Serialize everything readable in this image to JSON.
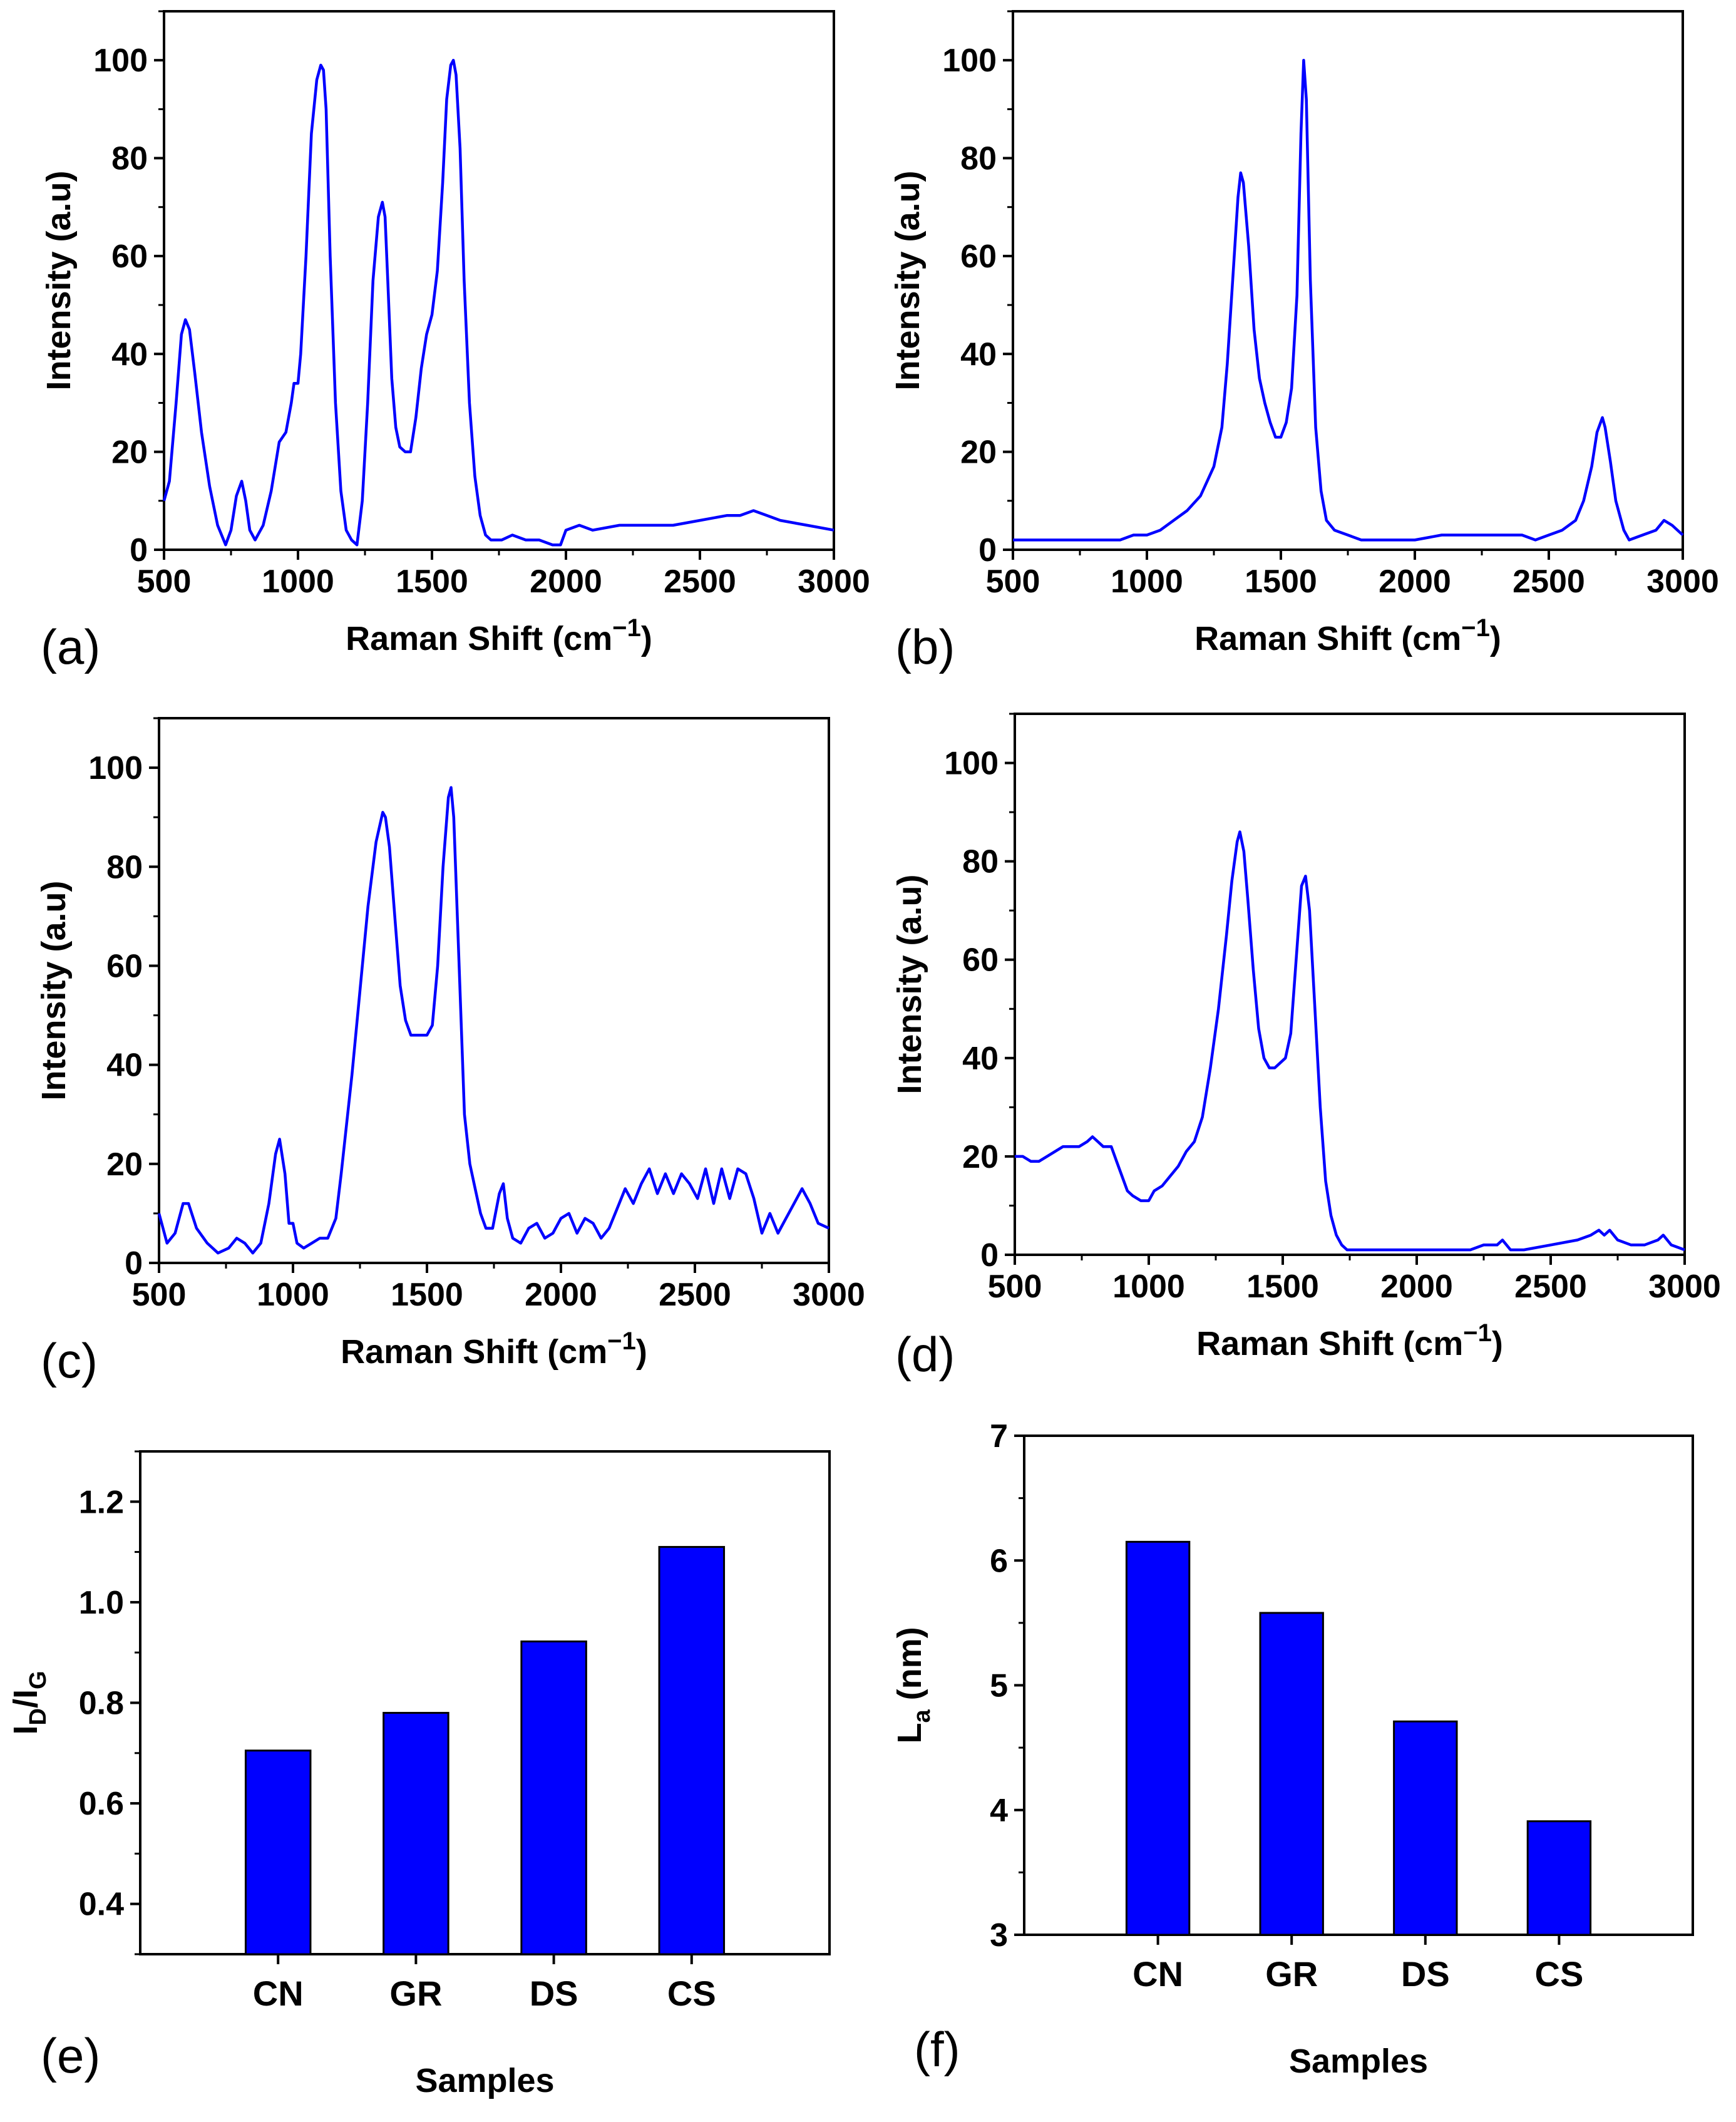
{
  "colors": {
    "series": "#0000ff",
    "axis": "#000000",
    "background": "#ffffff"
  },
  "chart_data": [
    {
      "type": "line",
      "panel_label": "(a)",
      "xlabel": "Raman Shift (cm",
      "xlabel_sup": "−1",
      "xlabel_close": ")",
      "ylabel": "Intensity (a.u)",
      "xlim": [
        500,
        3000
      ],
      "ylim": [
        0,
        110
      ],
      "xticks": [
        "500",
        "1000",
        "1500",
        "2000",
        "2500",
        "3000"
      ],
      "yticks": [
        "0",
        "20",
        "40",
        "60",
        "80",
        "100"
      ],
      "x": [
        500,
        520,
        545,
        565,
        580,
        595,
        615,
        640,
        670,
        700,
        730,
        750,
        770,
        790,
        805,
        820,
        840,
        870,
        900,
        930,
        955,
        975,
        985,
        1000,
        1010,
        1030,
        1050,
        1070,
        1085,
        1095,
        1105,
        1120,
        1140,
        1160,
        1180,
        1200,
        1220,
        1240,
        1260,
        1280,
        1300,
        1315,
        1325,
        1335,
        1350,
        1365,
        1380,
        1400,
        1420,
        1440,
        1460,
        1480,
        1500,
        1520,
        1540,
        1555,
        1570,
        1580,
        1590,
        1605,
        1620,
        1640,
        1660,
        1680,
        1700,
        1720,
        1740,
        1760,
        1800,
        1850,
        1900,
        1950,
        1980,
        2000,
        2050,
        2100,
        2200,
        2300,
        2400,
        2500,
        2600,
        2650,
        2700,
        2750,
        2800,
        2900,
        3000
      ],
      "y": [
        10,
        14,
        30,
        44,
        47,
        45,
        36,
        24,
        13,
        5,
        1,
        4,
        11,
        14,
        10,
        4,
        2,
        5,
        12,
        22,
        24,
        30,
        34,
        34,
        40,
        60,
        85,
        96,
        99,
        98,
        90,
        60,
        30,
        12,
        4,
        2,
        1,
        10,
        30,
        55,
        68,
        71,
        68,
        55,
        35,
        25,
        21,
        20,
        20,
        27,
        37,
        44,
        48,
        57,
        75,
        92,
        99,
        100,
        97,
        82,
        55,
        30,
        15,
        7,
        3,
        2,
        2,
        2,
        3,
        2,
        2,
        1,
        1,
        4,
        5,
        4,
        5,
        5,
        5,
        6,
        7,
        7,
        8,
        7,
        6,
        5,
        4
      ]
    },
    {
      "type": "line",
      "panel_label": "(b)",
      "xlabel": "Raman Shift (cm",
      "xlabel_sup": "−1",
      "xlabel_close": ")",
      "ylabel": "Intensity (a.u)",
      "xlim": [
        500,
        3000
      ],
      "ylim": [
        0,
        110
      ],
      "xticks": [
        "500",
        "1000",
        "1500",
        "2000",
        "2500",
        "3000"
      ],
      "yticks": [
        "0",
        "20",
        "40",
        "60",
        "80",
        "100"
      ],
      "x": [
        500,
        600,
        700,
        800,
        900,
        950,
        1000,
        1050,
        1100,
        1150,
        1200,
        1250,
        1280,
        1300,
        1320,
        1340,
        1350,
        1360,
        1380,
        1400,
        1420,
        1440,
        1460,
        1480,
        1500,
        1520,
        1540,
        1560,
        1575,
        1585,
        1595,
        1610,
        1630,
        1650,
        1670,
        1700,
        1750,
        1800,
        1900,
        2000,
        2100,
        2200,
        2300,
        2400,
        2450,
        2500,
        2550,
        2600,
        2630,
        2660,
        2680,
        2700,
        2710,
        2730,
        2750,
        2780,
        2800,
        2850,
        2900,
        2930,
        2960,
        3000
      ],
      "y": [
        2,
        2,
        2,
        2,
        2,
        3,
        3,
        4,
        6,
        8,
        11,
        17,
        25,
        38,
        55,
        72,
        77,
        75,
        62,
        45,
        35,
        30,
        26,
        23,
        23,
        26,
        33,
        52,
        85,
        100,
        92,
        55,
        25,
        12,
        6,
        4,
        3,
        2,
        2,
        2,
        3,
        3,
        3,
        3,
        2,
        3,
        4,
        6,
        10,
        17,
        24,
        27,
        25,
        18,
        10,
        4,
        2,
        3,
        4,
        6,
        5,
        3
      ]
    },
    {
      "type": "line",
      "panel_label": "(c)",
      "xlabel": "Raman Shift (cm",
      "xlabel_sup": "−1",
      "xlabel_close": ")",
      "ylabel": "Intensity (a.u)",
      "xlim": [
        500,
        3000
      ],
      "ylim": [
        0,
        110
      ],
      "xticks": [
        "500",
        "1000",
        "1500",
        "2000",
        "2500",
        "3000"
      ],
      "yticks": [
        "0",
        "20",
        "40",
        "60",
        "80",
        "100"
      ],
      "x": [
        500,
        530,
        560,
        590,
        610,
        640,
        680,
        720,
        760,
        790,
        820,
        850,
        880,
        910,
        935,
        950,
        970,
        985,
        1000,
        1015,
        1040,
        1070,
        1100,
        1130,
        1160,
        1180,
        1200,
        1220,
        1250,
        1280,
        1310,
        1335,
        1345,
        1360,
        1380,
        1400,
        1420,
        1440,
        1460,
        1480,
        1500,
        1520,
        1540,
        1560,
        1580,
        1590,
        1600,
        1620,
        1640,
        1660,
        1680,
        1700,
        1720,
        1745,
        1770,
        1785,
        1800,
        1820,
        1850,
        1880,
        1910,
        1940,
        1970,
        2000,
        2030,
        2060,
        2090,
        2120,
        2150,
        2180,
        2210,
        2240,
        2270,
        2300,
        2330,
        2360,
        2390,
        2420,
        2450,
        2480,
        2510,
        2540,
        2570,
        2600,
        2630,
        2660,
        2690,
        2720,
        2750,
        2780,
        2810,
        2840,
        2870,
        2900,
        2930,
        2960,
        3000
      ],
      "y": [
        10,
        4,
        6,
        12,
        12,
        7,
        4,
        2,
        3,
        5,
        4,
        2,
        4,
        12,
        22,
        25,
        18,
        8,
        8,
        4,
        3,
        4,
        5,
        5,
        9,
        18,
        28,
        38,
        55,
        72,
        85,
        91,
        90,
        84,
        70,
        56,
        49,
        46,
        46,
        46,
        46,
        48,
        60,
        80,
        94,
        96,
        90,
        60,
        30,
        20,
        15,
        10,
        7,
        7,
        14,
        16,
        9,
        5,
        4,
        7,
        8,
        5,
        6,
        9,
        10,
        6,
        9,
        8,
        5,
        7,
        11,
        15,
        12,
        16,
        19,
        14,
        18,
        14,
        18,
        16,
        13,
        19,
        12,
        19,
        13,
        19,
        18,
        13,
        6,
        10,
        6,
        9,
        12,
        15,
        12,
        8,
        7
      ]
    },
    {
      "type": "line",
      "panel_label": "(d)",
      "xlabel": "Raman Shift (cm",
      "xlabel_sup": "−1",
      "xlabel_close": ")",
      "ylabel": "Intensity (a.u)",
      "xlim": [
        500,
        3000
      ],
      "ylim": [
        0,
        110
      ],
      "xticks": [
        "500",
        "1000",
        "1500",
        "2000",
        "2500",
        "3000"
      ],
      "yticks": [
        "0",
        "20",
        "40",
        "60",
        "80",
        "100"
      ],
      "x": [
        500,
        530,
        560,
        590,
        620,
        650,
        680,
        710,
        740,
        770,
        790,
        810,
        830,
        860,
        880,
        900,
        920,
        940,
        970,
        1000,
        1020,
        1050,
        1080,
        1110,
        1140,
        1170,
        1200,
        1230,
        1260,
        1290,
        1310,
        1330,
        1340,
        1355,
        1370,
        1390,
        1410,
        1430,
        1450,
        1470,
        1490,
        1510,
        1530,
        1550,
        1570,
        1585,
        1600,
        1620,
        1640,
        1660,
        1680,
        1700,
        1720,
        1740,
        1770,
        1800,
        1850,
        1900,
        2000,
        2100,
        2200,
        2250,
        2300,
        2320,
        2350,
        2400,
        2500,
        2600,
        2650,
        2680,
        2700,
        2720,
        2750,
        2800,
        2850,
        2900,
        2920,
        2950,
        3000
      ],
      "y": [
        20,
        20,
        19,
        19,
        20,
        21,
        22,
        22,
        22,
        23,
        24,
        23,
        22,
        22,
        19,
        16,
        13,
        12,
        11,
        11,
        13,
        14,
        16,
        18,
        21,
        23,
        28,
        38,
        50,
        65,
        76,
        84,
        86,
        82,
        72,
        58,
        46,
        40,
        38,
        38,
        39,
        40,
        45,
        60,
        75,
        77,
        70,
        50,
        30,
        15,
        8,
        4,
        2,
        1,
        1,
        1,
        1,
        1,
        1,
        1,
        1,
        2,
        2,
        3,
        1,
        1,
        2,
        3,
        4,
        5,
        4,
        5,
        3,
        2,
        2,
        3,
        4,
        2,
        1
      ]
    },
    {
      "type": "bar",
      "panel_label": "(e)",
      "categories": [
        "CN",
        "GR",
        "DS",
        "CS"
      ],
      "values": [
        0.705,
        0.78,
        0.922,
        1.11
      ],
      "xlabel": "Samples",
      "ylabel_main": "I",
      "ylabel_sub1": "D",
      "ylabel_mid": "/I",
      "ylabel_sub2": "G",
      "ylim": [
        0.3,
        1.3
      ],
      "yticks": [
        "0.4",
        "0.6",
        "0.8",
        "1.0",
        "1.2"
      ]
    },
    {
      "type": "bar",
      "panel_label": "(f)",
      "categories": [
        "CN",
        "GR",
        "DS",
        "CS"
      ],
      "values": [
        6.15,
        5.58,
        4.71,
        3.91
      ],
      "xlabel": "Samples",
      "ylabel_main": "L",
      "ylabel_sub1": "a",
      "ylabel_mid": " (nm)",
      "ylim": [
        3,
        7
      ],
      "yticks": [
        "3",
        "4",
        "5",
        "6",
        "7"
      ]
    }
  ]
}
